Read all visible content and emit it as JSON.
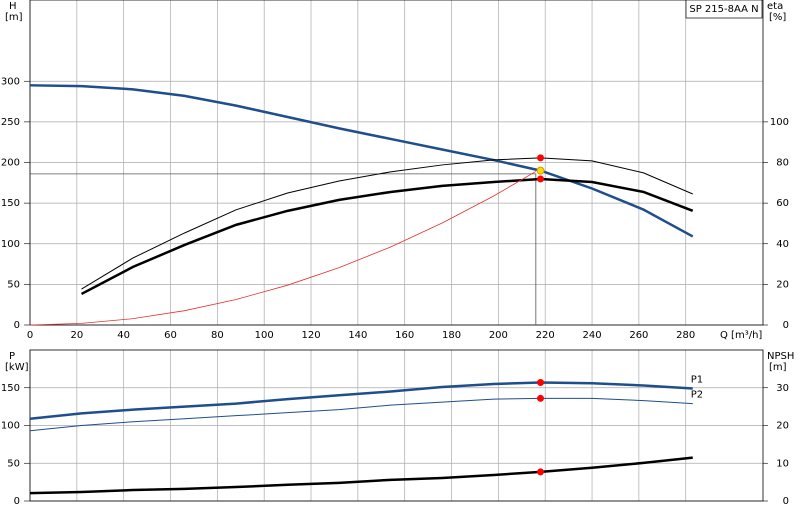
{
  "chart_data": [
    {
      "type": "line",
      "title": "SP 215-8AA N",
      "y_label": "H",
      "y_unit": "[m]",
      "y2_label": "eta",
      "y2_unit": "[%]",
      "x_label": "Q [m³/h]",
      "xlim": [
        0,
        313
      ],
      "xticks": [
        0,
        20,
        40,
        60,
        80,
        100,
        120,
        140,
        160,
        180,
        200,
        220,
        240,
        260,
        280
      ],
      "ylim": [
        0,
        400
      ],
      "yticks": [
        0,
        50,
        100,
        150,
        200,
        250,
        300
      ],
      "y2lim": [
        0,
        160
      ],
      "y2ticks": [
        0,
        20,
        40,
        60,
        80,
        100
      ],
      "grid": true,
      "series": [
        {
          "color": "#1f4e8c",
          "width": 2.5,
          "x": [
            0,
            22,
            44,
            66,
            88,
            110,
            132,
            154,
            176,
            198,
            218,
            240,
            262,
            283
          ],
          "values": [
            295,
            294,
            290,
            282,
            270,
            256,
            242,
            229,
            216,
            203,
            190,
            168,
            142,
            109
          ]
        },
        {
          "color": "#000000",
          "width": 1,
          "axis": "y2",
          "x": [
            22,
            44,
            66,
            88,
            110,
            132,
            154,
            176,
            198,
            218,
            240,
            262,
            283
          ],
          "values": [
            17.7,
            33,
            45.3,
            56.7,
            65,
            70.9,
            75.4,
            78.8,
            81.3,
            82.3,
            80.8,
            74.9,
            64.5
          ]
        },
        {
          "color": "#000000",
          "width": 2.5,
          "axis": "y2",
          "x": [
            22,
            44,
            66,
            88,
            110,
            132,
            154,
            176,
            198,
            218,
            240,
            262,
            283
          ],
          "values": [
            15.3,
            28.6,
            39.4,
            49.3,
            56.2,
            61.6,
            65.5,
            68.5,
            70.4,
            71.9,
            70.4,
            65.5,
            56.2
          ]
        },
        {
          "color": "#e83030",
          "width": 0.8,
          "x": [
            0,
            22,
            44,
            66,
            88,
            110,
            132,
            154,
            176,
            198,
            216
          ],
          "values": [
            0,
            2,
            7.8,
            17.6,
            31.4,
            49,
            70.6,
            96,
            125.5,
            158.8,
            189
          ]
        }
      ],
      "duty_point": {
        "x": 216,
        "y": 186
      },
      "points": [
        {
          "x": 218,
          "y": 190,
          "color": "#ffd700"
        },
        {
          "x": 218,
          "y": 82.3,
          "axis": "y2",
          "color": "#ff0000"
        },
        {
          "x": 218,
          "y": 71.9,
          "axis": "y2",
          "color": "#ff0000"
        }
      ]
    },
    {
      "type": "line",
      "y_label": "P",
      "y_unit": "[kW]",
      "y2_label": "NPSH",
      "y2_unit": "[m]",
      "xlim": [
        0,
        313
      ],
      "ylim": [
        0,
        200
      ],
      "yticks": [
        0,
        50,
        100,
        150
      ],
      "y2lim": [
        0,
        40
      ],
      "y2ticks": [
        0,
        10,
        20,
        30
      ],
      "grid": true,
      "series": [
        {
          "name": "P1",
          "color": "#1f4e8c",
          "width": 2.5,
          "x": [
            0,
            22,
            44,
            66,
            88,
            110,
            132,
            154,
            176,
            198,
            218,
            240,
            262,
            283
          ],
          "values": [
            109,
            116,
            121,
            125,
            129,
            135,
            140,
            145,
            151,
            155,
            157,
            156,
            153,
            149
          ]
        },
        {
          "name": "P2",
          "color": "#1f4e8c",
          "width": 1,
          "x": [
            0,
            22,
            44,
            66,
            88,
            110,
            132,
            154,
            176,
            198,
            218,
            240,
            262,
            283
          ],
          "values": [
            93,
            100,
            105,
            109,
            113,
            117,
            121,
            127,
            131,
            135,
            136,
            136,
            133,
            129
          ]
        },
        {
          "color": "#000000",
          "width": 2.5,
          "axis": "y2",
          "x": [
            0,
            22,
            44,
            66,
            88,
            110,
            132,
            154,
            176,
            198,
            218,
            240,
            262,
            283
          ],
          "values": [
            2.1,
            2.4,
            2.9,
            3.2,
            3.7,
            4.3,
            4.8,
            5.6,
            6.1,
            6.9,
            7.7,
            8.8,
            10.1,
            11.5
          ]
        }
      ],
      "points": [
        {
          "x": 218,
          "y": 157,
          "color": "#ff0000"
        },
        {
          "x": 218,
          "y": 136,
          "color": "#ff0000"
        },
        {
          "x": 218,
          "y": 7.7,
          "axis": "y2",
          "color": "#ff0000"
        }
      ]
    }
  ]
}
